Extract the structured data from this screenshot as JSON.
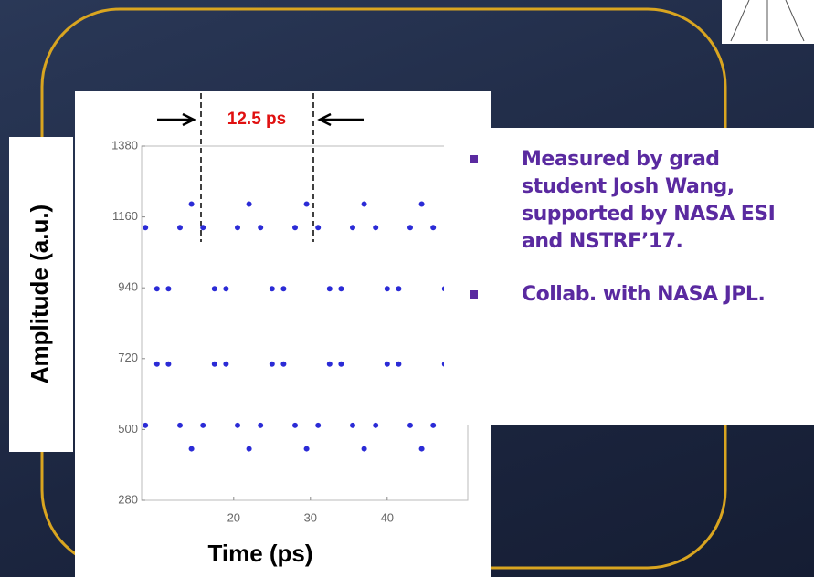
{
  "chart_data": {
    "type": "scatter",
    "x": [
      8.5,
      10,
      11.5,
      13,
      14.5,
      16,
      17.5,
      19,
      20.5,
      22,
      23.5,
      25,
      26.5,
      28,
      29.5,
      31,
      32.5,
      34,
      35.5,
      37,
      38.5,
      40,
      41.5,
      43,
      44.5,
      46,
      47.5,
      49
    ],
    "series": [
      {
        "color": "#2b2bd6",
        "values": [
          1127,
          937,
          703,
          513,
          440,
          513,
          703,
          937,
          1127,
          1200,
          1127,
          937,
          703,
          513,
          440,
          513,
          703,
          937,
          1127,
          1200,
          1127,
          937,
          703,
          513,
          440,
          513,
          703,
          937
        ]
      },
      {
        "color": "#2b2bd6",
        "values": [
          513,
          703,
          937,
          1127,
          1200,
          1127,
          937,
          703,
          513,
          440,
          513,
          703,
          937,
          1127,
          1200,
          1127,
          937,
          703,
          513,
          440,
          513,
          703,
          937,
          1127,
          1200,
          1127,
          937,
          703
        ]
      }
    ],
    "xlim": [
      8,
      50.5
    ],
    "xticks": [
      20,
      30,
      40
    ],
    "ylim": [
      280,
      1380
    ],
    "yticks": [
      280,
      500,
      720,
      940,
      1160,
      1380
    ],
    "xlabel": "Time (ps)",
    "ylabel": "Amplitude (a.u.)",
    "annotation": "12.5 ps"
  },
  "bullets": [
    "Measured by grad student Josh Wang, supported by NASA ESI and NSTRF’17.",
    "Collab. with NASA JPL."
  ]
}
